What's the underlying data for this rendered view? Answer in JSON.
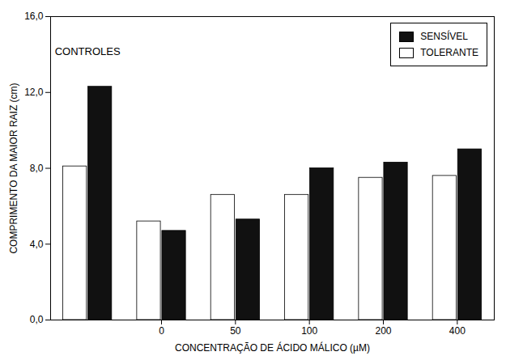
{
  "chart_data": {
    "type": "bar",
    "categories": [
      null,
      "0",
      "50",
      "100",
      "200",
      "400"
    ],
    "series": [
      {
        "name": "SENSÍVEL",
        "color": "#111111",
        "values": [
          12.3,
          4.7,
          5.3,
          8.0,
          8.3,
          9.0
        ]
      },
      {
        "name": "TOLERANTE",
        "color": "#ffffff",
        "values": [
          8.1,
          5.2,
          6.6,
          6.6,
          7.5,
          7.6
        ]
      }
    ],
    "xlabel": "CONCENTRAÇÃO DE ÁCIDO MÁLICO (µM)",
    "ylabel": "COMPRIMENTO DA MAIOR RAIZ (cm)",
    "ylim": [
      0,
      16.0
    ],
    "yticks": [
      {
        "value": 0.0,
        "label": "0,0"
      },
      {
        "value": 4.0,
        "label": "4,0"
      },
      {
        "value": 8.0,
        "label": "8,0"
      },
      {
        "value": 12.0,
        "label": "12,0"
      },
      {
        "value": 16.0,
        "label": "16,0"
      }
    ],
    "annotations": [
      "CONTROLES"
    ],
    "legend": "upper right",
    "grid": false
  }
}
